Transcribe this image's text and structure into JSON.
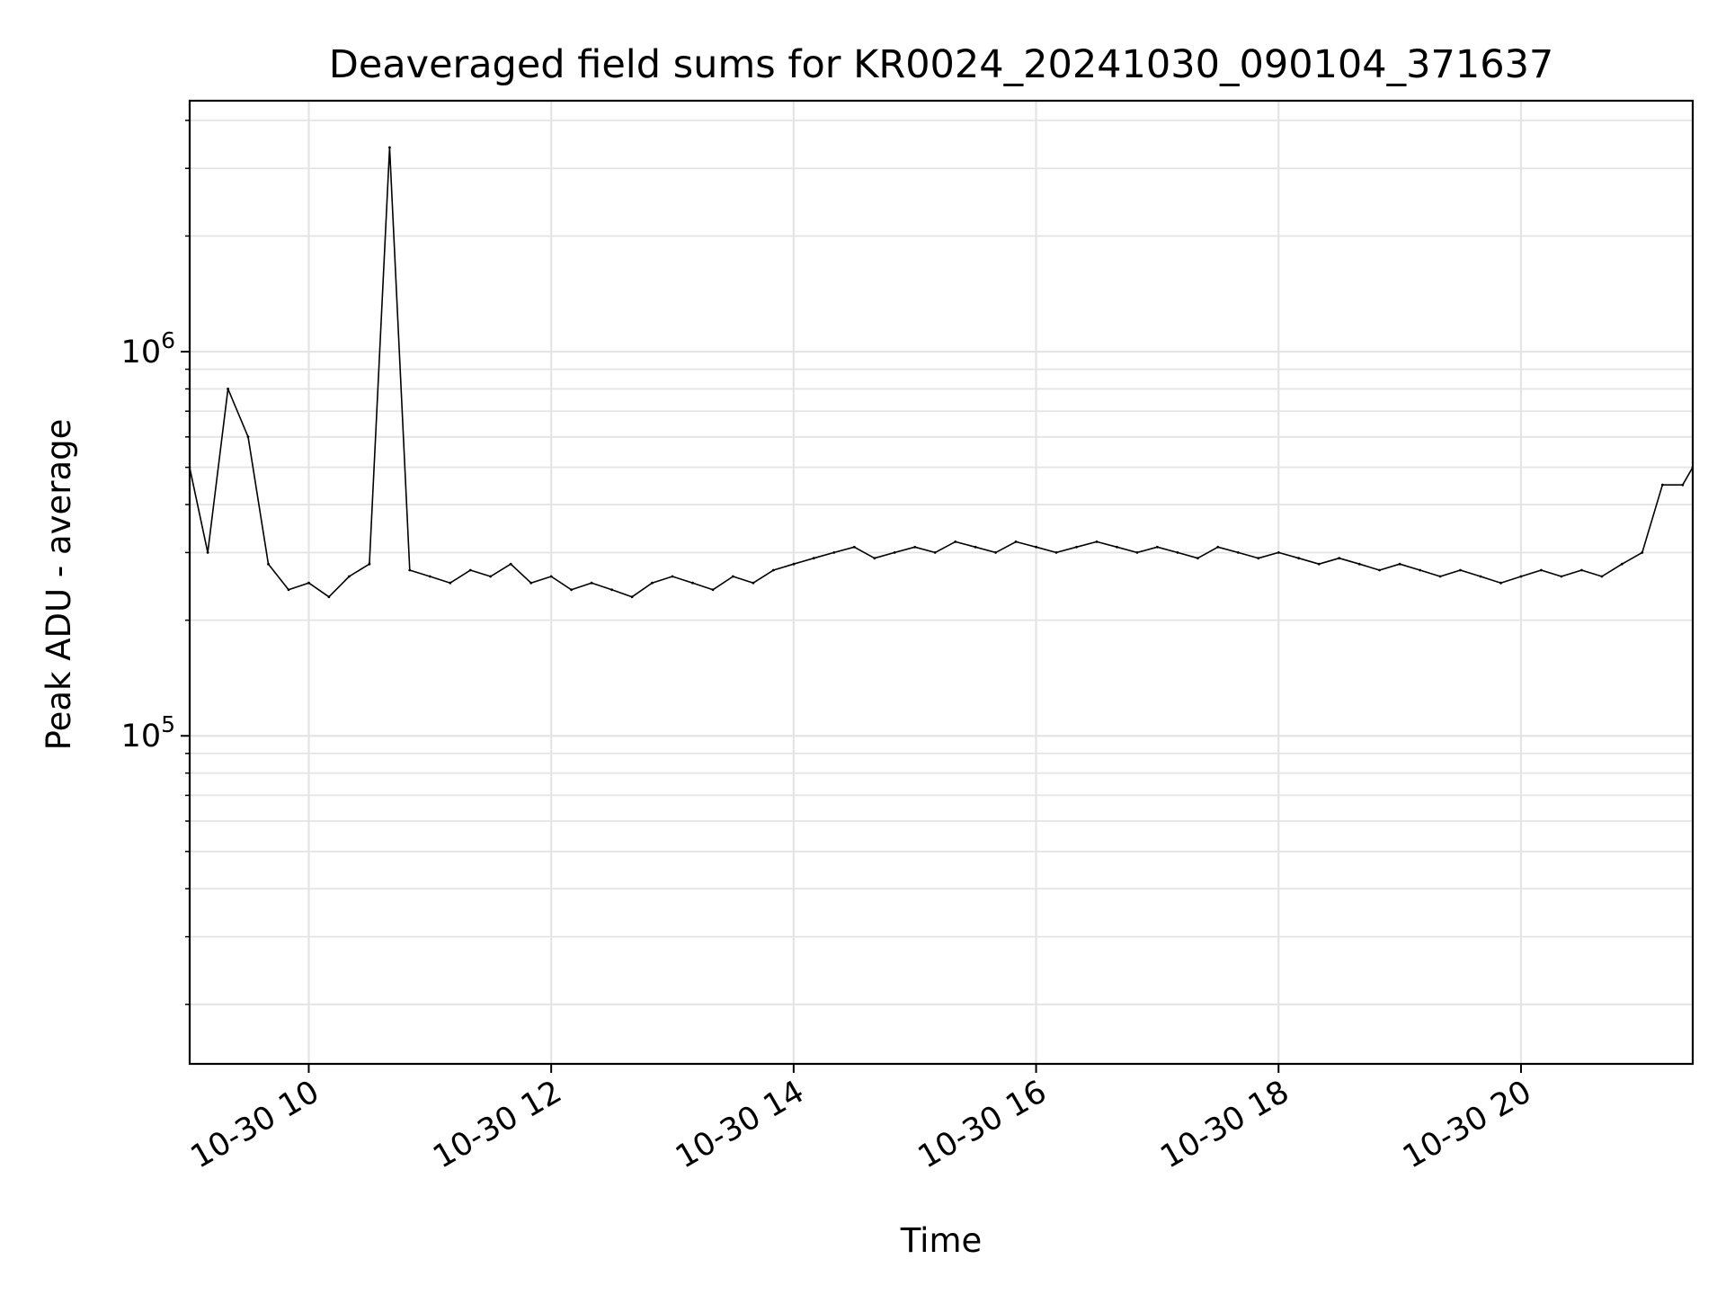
{
  "chart_data": {
    "type": "line",
    "title": "Deaveraged field sums for KR0024_20241030_090104_371637",
    "xlabel": "Time",
    "ylabel": "Peak ADU - average",
    "y_scale": "log",
    "x_range": [
      "2024-10-30T09:01:04",
      "2024-10-30T21:25:00"
    ],
    "ylim": [
      14000,
      4500000
    ],
    "x_ticks": [
      {
        "time": "2024-10-30T10:00",
        "label": "10-30 10"
      },
      {
        "time": "2024-10-30T12:00",
        "label": "10-30 12"
      },
      {
        "time": "2024-10-30T14:00",
        "label": "10-30 14"
      },
      {
        "time": "2024-10-30T16:00",
        "label": "10-30 16"
      },
      {
        "time": "2024-10-30T18:00",
        "label": "10-30 18"
      },
      {
        "time": "2024-10-30T20:00",
        "label": "10-30 20"
      }
    ],
    "y_ticks": [
      {
        "value": 100000,
        "base": "10",
        "exponent": "5"
      },
      {
        "value": 1000000,
        "base": "10",
        "exponent": "6"
      }
    ],
    "grid": true,
    "series": [
      {
        "color": "#000000",
        "x": [
          "2024-10-30T09:01",
          "2024-10-30T09:10",
          "2024-10-30T09:20",
          "2024-10-30T09:30",
          "2024-10-30T09:40",
          "2024-10-30T09:50",
          "2024-10-30T10:00",
          "2024-10-30T10:10",
          "2024-10-30T10:20",
          "2024-10-30T10:30",
          "2024-10-30T10:40",
          "2024-10-30T10:50",
          "2024-10-30T11:00",
          "2024-10-30T11:10",
          "2024-10-30T11:20",
          "2024-10-30T11:30",
          "2024-10-30T11:40",
          "2024-10-30T11:50",
          "2024-10-30T12:00",
          "2024-10-30T12:10",
          "2024-10-30T12:20",
          "2024-10-30T12:30",
          "2024-10-30T12:40",
          "2024-10-30T12:50",
          "2024-10-30T13:00",
          "2024-10-30T13:10",
          "2024-10-30T13:20",
          "2024-10-30T13:30",
          "2024-10-30T13:40",
          "2024-10-30T13:50",
          "2024-10-30T14:00",
          "2024-10-30T14:10",
          "2024-10-30T14:20",
          "2024-10-30T14:30",
          "2024-10-30T14:40",
          "2024-10-30T14:50",
          "2024-10-30T15:00",
          "2024-10-30T15:10",
          "2024-10-30T15:20",
          "2024-10-30T15:30",
          "2024-10-30T15:40",
          "2024-10-30T15:50",
          "2024-10-30T16:00",
          "2024-10-30T16:10",
          "2024-10-30T16:20",
          "2024-10-30T16:30",
          "2024-10-30T16:40",
          "2024-10-30T16:50",
          "2024-10-30T17:00",
          "2024-10-30T17:10",
          "2024-10-30T17:20",
          "2024-10-30T17:30",
          "2024-10-30T17:40",
          "2024-10-30T17:50",
          "2024-10-30T18:00",
          "2024-10-30T18:10",
          "2024-10-30T18:20",
          "2024-10-30T18:30",
          "2024-10-30T18:40",
          "2024-10-30T18:50",
          "2024-10-30T19:00",
          "2024-10-30T19:10",
          "2024-10-30T19:20",
          "2024-10-30T19:30",
          "2024-10-30T19:40",
          "2024-10-30T19:50",
          "2024-10-30T20:00",
          "2024-10-30T20:10",
          "2024-10-30T20:20",
          "2024-10-30T20:30",
          "2024-10-30T20:40",
          "2024-10-30T20:50",
          "2024-10-30T21:00",
          "2024-10-30T21:10",
          "2024-10-30T21:20",
          "2024-10-30T21:25"
        ],
        "y": [
          500000,
          300000,
          800000,
          600000,
          280000,
          240000,
          250000,
          230000,
          260000,
          280000,
          3400000,
          270000,
          260000,
          250000,
          270000,
          260000,
          280000,
          250000,
          260000,
          240000,
          250000,
          240000,
          230000,
          250000,
          260000,
          250000,
          240000,
          260000,
          250000,
          270000,
          280000,
          290000,
          300000,
          310000,
          290000,
          300000,
          310000,
          300000,
          320000,
          310000,
          300000,
          320000,
          310000,
          300000,
          310000,
          320000,
          310000,
          300000,
          310000,
          300000,
          290000,
          310000,
          300000,
          290000,
          300000,
          290000,
          280000,
          290000,
          280000,
          270000,
          280000,
          270000,
          260000,
          270000,
          260000,
          250000,
          260000,
          270000,
          260000,
          270000,
          260000,
          280000,
          300000,
          450000,
          450000,
          500000
        ]
      }
    ]
  }
}
